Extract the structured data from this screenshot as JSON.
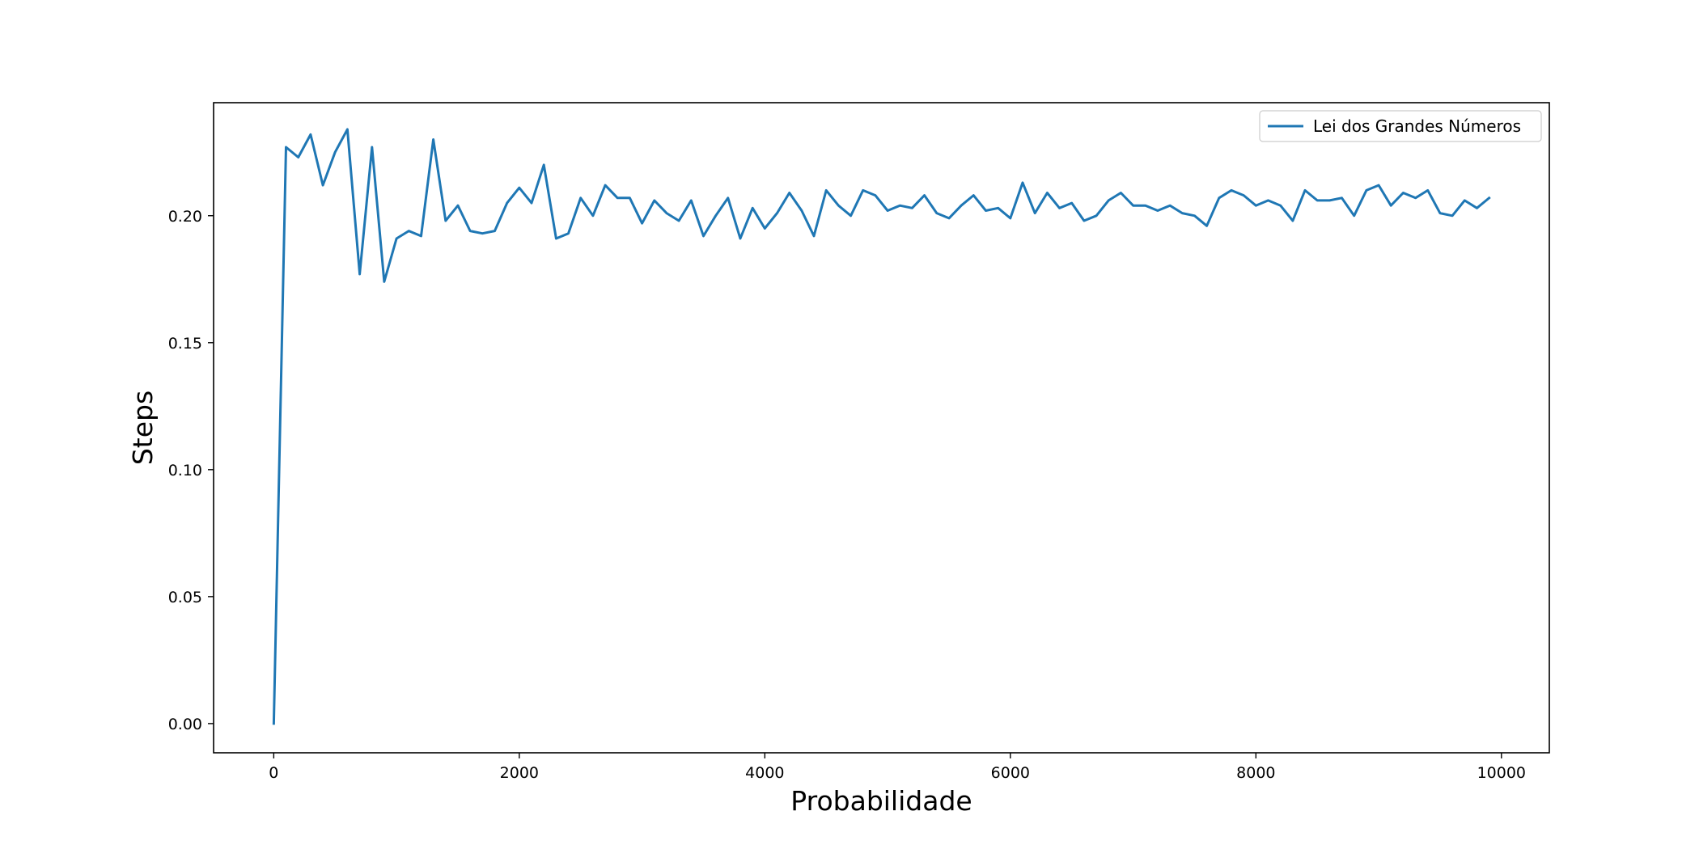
{
  "chart_data": {
    "type": "line",
    "title": "",
    "xlabel": "Probabilidade",
    "ylabel": "Steps",
    "xlim": [
      -490,
      10390
    ],
    "ylim": [
      -0.0115,
      0.2445
    ],
    "xticks": [
      0,
      2000,
      4000,
      6000,
      8000,
      10000
    ],
    "xtick_labels": [
      "0",
      "2000",
      "4000",
      "6000",
      "8000",
      "10000"
    ],
    "yticks": [
      0.0,
      0.05,
      0.1,
      0.15,
      0.2
    ],
    "ytick_labels": [
      "0.00",
      "0.05",
      "0.10",
      "0.15",
      "0.20"
    ],
    "grid": false,
    "legend": {
      "position": "top-right",
      "entries": [
        "Lei dos Grandes Números"
      ]
    },
    "colors": {
      "series": "#1f77b4"
    },
    "series": [
      {
        "name": "Lei dos Grandes Números",
        "x": [
          0,
          100,
          200,
          300,
          400,
          500,
          600,
          700,
          800,
          900,
          1000,
          1100,
          1200,
          1300,
          1400,
          1500,
          1600,
          1700,
          1800,
          1900,
          2000,
          2100,
          2200,
          2300,
          2400,
          2500,
          2600,
          2700,
          2800,
          2900,
          3000,
          3100,
          3200,
          3300,
          3400,
          3500,
          3600,
          3700,
          3800,
          3900,
          4000,
          4100,
          4200,
          4300,
          4400,
          4500,
          4600,
          4700,
          4800,
          4900,
          5000,
          5100,
          5200,
          5300,
          5400,
          5500,
          5600,
          5700,
          5800,
          5900,
          6000,
          6100,
          6200,
          6300,
          6400,
          6500,
          6600,
          6700,
          6800,
          6900,
          7000,
          7100,
          7200,
          7300,
          7400,
          7500,
          7600,
          7700,
          7800,
          7900,
          8000,
          8100,
          8200,
          8300,
          8400,
          8500,
          8600,
          8700,
          8800,
          8900,
          9000,
          9100,
          9200,
          9300,
          9400,
          9500,
          9600,
          9700,
          9800,
          9900
        ],
        "values": [
          0.0,
          0.227,
          0.223,
          0.232,
          0.212,
          0.225,
          0.234,
          0.177,
          0.227,
          0.174,
          0.191,
          0.194,
          0.192,
          0.23,
          0.198,
          0.204,
          0.194,
          0.193,
          0.194,
          0.205,
          0.211,
          0.205,
          0.22,
          0.191,
          0.193,
          0.207,
          0.2,
          0.212,
          0.207,
          0.207,
          0.197,
          0.206,
          0.201,
          0.198,
          0.206,
          0.192,
          0.2,
          0.207,
          0.191,
          0.203,
          0.195,
          0.201,
          0.209,
          0.202,
          0.192,
          0.21,
          0.204,
          0.2,
          0.21,
          0.208,
          0.202,
          0.204,
          0.203,
          0.208,
          0.201,
          0.199,
          0.204,
          0.208,
          0.202,
          0.203,
          0.199,
          0.213,
          0.201,
          0.209,
          0.203,
          0.205,
          0.198,
          0.2,
          0.206,
          0.209,
          0.204,
          0.204,
          0.202,
          0.204,
          0.201,
          0.2,
          0.196,
          0.207,
          0.21,
          0.208,
          0.204,
          0.206,
          0.204,
          0.198,
          0.21,
          0.206,
          0.206,
          0.207,
          0.2,
          0.21,
          0.212,
          0.204,
          0.209,
          0.207,
          0.21,
          0.201,
          0.2,
          0.206,
          0.203,
          0.207
        ]
      }
    ]
  }
}
